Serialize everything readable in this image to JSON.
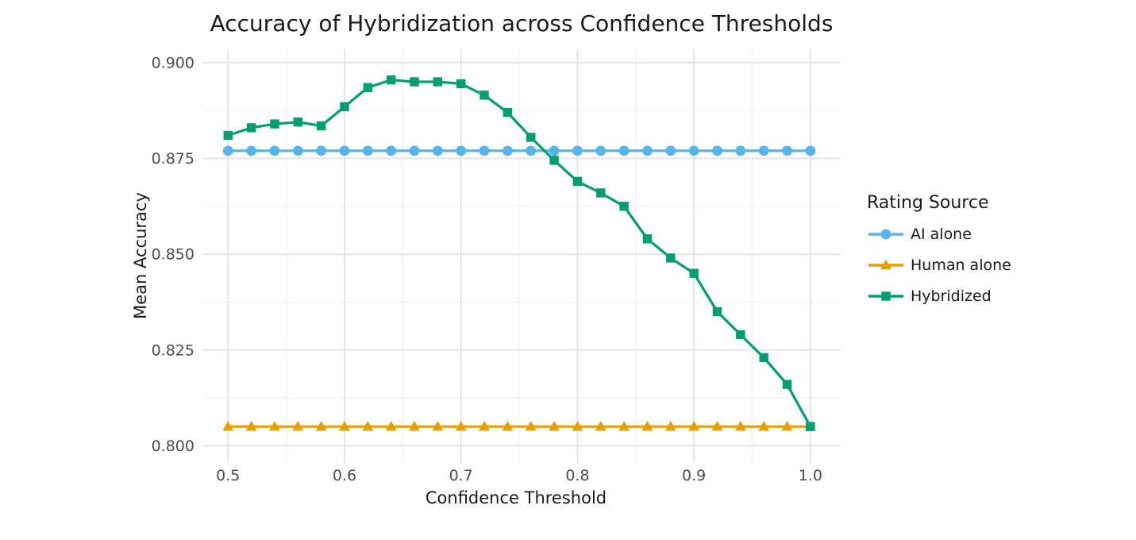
{
  "title": "Accuracy of Hybridization across Confidence Thresholds",
  "colors": {
    "ai_alone": "#56B4E9",
    "human_alone": "#E69F00",
    "hybridized": "#009E73",
    "grid_major": "#E3E3E3",
    "grid_minor": "#F0F0F0",
    "tick_text": "#4D4D4D",
    "text": "#1A1A1A",
    "background": "#FFFFFF"
  },
  "legend": {
    "title": "Rating Source",
    "items": [
      {
        "label": "AI alone",
        "marker": "circle",
        "color": "#56B4E9"
      },
      {
        "label": "Human alone",
        "marker": "triangle",
        "color": "#E69F00"
      },
      {
        "label": "Hybridized",
        "marker": "square",
        "color": "#009E73"
      }
    ]
  },
  "chart_data": {
    "type": "line",
    "title": "Accuracy of Hybridization across Confidence Thresholds",
    "xlabel": "Confidence Threshold",
    "ylabel": "Mean Accuracy",
    "legend_title": "Rating Source",
    "legend_position": "right",
    "grid": true,
    "x": [
      0.5,
      0.52,
      0.54,
      0.56,
      0.58,
      0.6,
      0.62,
      0.64,
      0.66,
      0.68,
      0.7,
      0.72,
      0.74,
      0.76,
      0.78,
      0.8,
      0.82,
      0.84,
      0.86,
      0.88,
      0.9,
      0.92,
      0.94,
      0.96,
      0.98,
      1.0
    ],
    "series": [
      {
        "name": "AI alone",
        "marker": "circle",
        "color": "#56B4E9",
        "values": [
          0.877,
          0.877,
          0.877,
          0.877,
          0.877,
          0.877,
          0.877,
          0.877,
          0.877,
          0.877,
          0.877,
          0.877,
          0.877,
          0.877,
          0.877,
          0.877,
          0.877,
          0.877,
          0.877,
          0.877,
          0.877,
          0.877,
          0.877,
          0.877,
          0.877,
          0.877
        ]
      },
      {
        "name": "Human alone",
        "marker": "triangle",
        "color": "#E69F00",
        "values": [
          0.805,
          0.805,
          0.805,
          0.805,
          0.805,
          0.805,
          0.805,
          0.805,
          0.805,
          0.805,
          0.805,
          0.805,
          0.805,
          0.805,
          0.805,
          0.805,
          0.805,
          0.805,
          0.805,
          0.805,
          0.805,
          0.805,
          0.805,
          0.805,
          0.805,
          0.805
        ]
      },
      {
        "name": "Hybridized",
        "marker": "square",
        "color": "#009E73",
        "values": [
          0.881,
          0.883,
          0.884,
          0.8845,
          0.8835,
          0.8885,
          0.8935,
          0.8955,
          0.895,
          0.895,
          0.8945,
          0.8915,
          0.887,
          0.8805,
          0.8745,
          0.869,
          0.866,
          0.8625,
          0.854,
          0.849,
          0.845,
          0.835,
          0.829,
          0.823,
          0.816,
          0.805
        ]
      }
    ],
    "xticks": [
      0.5,
      0.6,
      0.7,
      0.8,
      0.9,
      1.0
    ],
    "xtick_labels": [
      "0.5",
      "0.6",
      "0.7",
      "0.8",
      "0.9",
      "1.0"
    ],
    "xticks_minor": [
      0.55,
      0.65,
      0.75,
      0.85,
      0.95
    ],
    "yticks": [
      0.8,
      0.825,
      0.85,
      0.875,
      0.9
    ],
    "ytick_labels": [
      "0.800",
      "0.825",
      "0.850",
      "0.875",
      "0.900"
    ],
    "yticks_minor": [
      0.8125,
      0.8375,
      0.8625,
      0.8875
    ],
    "xlim": [
      0.478,
      1.026
    ],
    "ylim": [
      0.7955,
      0.9035
    ]
  }
}
